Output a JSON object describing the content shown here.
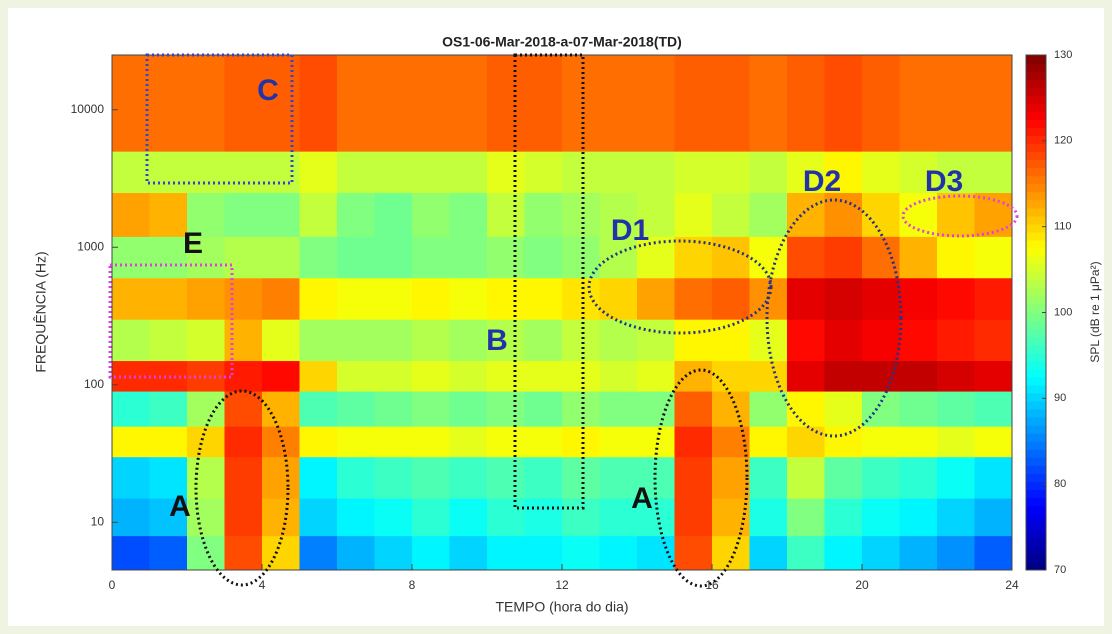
{
  "chart_data": {
    "type": "heatmap",
    "title": "OS1-06-Mar-2018-a-07-Mar-2018(TD)",
    "x_label": "TEMPO (hora do dia)",
    "y_label": "FREQUÊNCIA (Hz)",
    "x": [
      0,
      1,
      2,
      3,
      4,
      5,
      6,
      7,
      8,
      9,
      10,
      11,
      12,
      13,
      14,
      15,
      16,
      17,
      18,
      19,
      20,
      21,
      22,
      23,
      24
    ],
    "y_bins": [
      4.5,
      8,
      15,
      30,
      50,
      90,
      150,
      300,
      600,
      1200,
      2500,
      5000,
      25000
    ],
    "values": [
      [
        82,
        83,
        100,
        118,
        110,
        85,
        88,
        90,
        92,
        90,
        92,
        92,
        93,
        92,
        91,
        118,
        110,
        90,
        96,
        92,
        90,
        88,
        86,
        83
      ],
      [
        88,
        89,
        102,
        119,
        112,
        90,
        92,
        93,
        95,
        93,
        95,
        94,
        96,
        95,
        95,
        119,
        112,
        94,
        100,
        95,
        93,
        92,
        90,
        88
      ],
      [
        90,
        91,
        103,
        119,
        113,
        92,
        95,
        96,
        97,
        96,
        97,
        96,
        98,
        97,
        97,
        119,
        113,
        96,
        104,
        98,
        96,
        95,
        93,
        91
      ],
      [
        108,
        108,
        110,
        120,
        115,
        108,
        107,
        107,
        107,
        106,
        107,
        107,
        108,
        107,
        107,
        120,
        115,
        108,
        110,
        108,
        107,
        107,
        106,
        107
      ],
      [
        95,
        96,
        102,
        118,
        112,
        97,
        98,
        99,
        100,
        99,
        100,
        99,
        101,
        100,
        100,
        117,
        112,
        101,
        108,
        106,
        100,
        99,
        98,
        97
      ],
      [
        120,
        120,
        119,
        121,
        122,
        110,
        105,
        105,
        106,
        105,
        106,
        106,
        106,
        105,
        106,
        112,
        110,
        110,
        124,
        126,
        126,
        126,
        125,
        124
      ],
      [
        103,
        104,
        105,
        112,
        106,
        102,
        102,
        102,
        103,
        102,
        103,
        102,
        104,
        103,
        104,
        108,
        108,
        106,
        122,
        124,
        123,
        122,
        121,
        120
      ],
      [
        112,
        112,
        113,
        114,
        115,
        108,
        107,
        107,
        108,
        107,
        108,
        108,
        109,
        110,
        113,
        116,
        117,
        114,
        124,
        125,
        124,
        123,
        122,
        121
      ],
      [
        101,
        101,
        102,
        103,
        103,
        100,
        99,
        99,
        100,
        100,
        101,
        100,
        101,
        103,
        106,
        110,
        111,
        107,
        118,
        119,
        116,
        112,
        108,
        107
      ],
      [
        113,
        112,
        101,
        100,
        100,
        104,
        100,
        99,
        101,
        100,
        104,
        101,
        102,
        103,
        104,
        106,
        104,
        102,
        112,
        114,
        110,
        107,
        111,
        113
      ],
      [
        104,
        104,
        104,
        104,
        104,
        106,
        104,
        104,
        104,
        104,
        106,
        105,
        104,
        104,
        104,
        105,
        105,
        104,
        106,
        108,
        106,
        105,
        104,
        104
      ],
      [
        116,
        116,
        116,
        117,
        117,
        118,
        116,
        116,
        116,
        116,
        117,
        117,
        116,
        116,
        116,
        117,
        117,
        116,
        117,
        118,
        117,
        116,
        116,
        116
      ]
    ],
    "xlim": [
      0,
      24
    ],
    "xticks": [
      0,
      4,
      8,
      12,
      16,
      20,
      24
    ],
    "ylim": [
      4.5,
      25000
    ],
    "yticks": [
      10,
      100,
      1000,
      10000
    ],
    "log_y": true,
    "colormap": "jet",
    "clim": [
      70,
      130
    ],
    "cticks": [
      70,
      80,
      90,
      100,
      110,
      120,
      130
    ],
    "colorbar_label": "SPL (dB re 1 μPa²)",
    "annotations": [
      "C",
      "E",
      "D1",
      "D2",
      "D3",
      "B",
      "A",
      "A"
    ]
  }
}
